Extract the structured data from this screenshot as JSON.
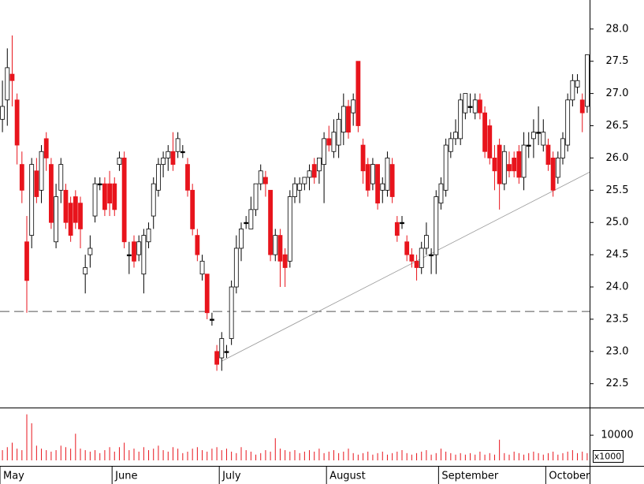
{
  "chart_data": {
    "type": "candlestick",
    "categories": [
      "May",
      null,
      null,
      null,
      null,
      null,
      null,
      null,
      null,
      null,
      null,
      null,
      null,
      null,
      null,
      null,
      null,
      null,
      null,
      null,
      null,
      null,
      null,
      "June",
      null,
      null,
      null,
      null,
      null,
      null,
      null,
      null,
      null,
      null,
      null,
      null,
      null,
      null,
      null,
      null,
      null,
      null,
      null,
      null,
      null,
      "July",
      null,
      null,
      null,
      null,
      null,
      null,
      null,
      null,
      null,
      null,
      null,
      null,
      null,
      null,
      null,
      null,
      null,
      null,
      null,
      null,
      null,
      "August",
      null,
      null,
      null,
      null,
      null,
      null,
      null,
      null,
      null,
      null,
      null,
      null,
      null,
      null,
      null,
      null,
      null,
      null,
      null,
      null,
      null,
      null,
      "September",
      null,
      null,
      null,
      null,
      null,
      null,
      null,
      null,
      null,
      null,
      null,
      null,
      null,
      null,
      null,
      null,
      null,
      null,
      null,
      null,
      null,
      "October",
      null,
      null,
      null,
      null,
      null,
      null,
      null,
      null
    ],
    "open": [
      26.6,
      26.9,
      27.3,
      26.9,
      25.9,
      24.7,
      24.8,
      25.8,
      25.5,
      26.3,
      25.9,
      24.7,
      25.5,
      25.5,
      25.3,
      25.4,
      25.3,
      24.2,
      24.5,
      25.1,
      25.6,
      25.6,
      25.6,
      25.6,
      25.9,
      26.0,
      24.5,
      24.7,
      24.5,
      24.2,
      24.7,
      25.1,
      25.5,
      25.9,
      26.0,
      26.1,
      26.1,
      26.1,
      25.9,
      25.5,
      24.8,
      24.2,
      24.2,
      23.5,
      23.0,
      22.9,
      23.0,
      23.2,
      24.0,
      24.6,
      25.0,
      24.9,
      25.2,
      25.6,
      25.7,
      25.5,
      24.5,
      24.8,
      24.5,
      24.4,
      25.4,
      25.5,
      25.6,
      25.7,
      25.9,
      25.8,
      25.9,
      26.3,
      26.1,
      26.2,
      26.4,
      26.8,
      26.7,
      27.5,
      26.2,
      25.9,
      25.6,
      25.9,
      25.5,
      25.5,
      25.9,
      25.0,
      25.0,
      24.7,
      24.5,
      24.4,
      24.3,
      24.6,
      24.5,
      24.5,
      25.3,
      25.5,
      26.1,
      26.3,
      26.3,
      26.7,
      26.8,
      26.7,
      26.9,
      26.7,
      26.5,
      26.0,
      26.2,
      25.6,
      25.9,
      26.0,
      26.1,
      25.7,
      26.2,
      26.3,
      26.4,
      26.2,
      26.2,
      26.0,
      25.7,
      26.0,
      26.2,
      26.9,
      27.1,
      26.9,
      26.8
    ],
    "high": [
      27.2,
      27.7,
      27.9,
      27.0,
      26.1,
      25.1,
      26.0,
      26.0,
      26.2,
      26.4,
      26.0,
      25.6,
      26.0,
      25.6,
      25.4,
      25.5,
      25.4,
      24.5,
      24.8,
      25.7,
      25.7,
      25.7,
      25.8,
      25.7,
      26.1,
      26.1,
      24.7,
      24.8,
      24.8,
      24.9,
      25.0,
      25.7,
      26.0,
      26.1,
      26.2,
      26.4,
      26.4,
      26.2,
      26.0,
      25.6,
      24.9,
      24.5,
      24.2,
      23.6,
      23.1,
      23.3,
      23.1,
      24.1,
      24.8,
      25.0,
      25.1,
      25.4,
      25.6,
      25.9,
      25.8,
      25.5,
      24.9,
      24.9,
      24.6,
      25.5,
      25.7,
      25.7,
      25.7,
      25.9,
      26.0,
      26.0,
      26.4,
      26.5,
      26.6,
      26.7,
      27.0,
      26.9,
      27.0,
      27.5,
      26.3,
      26.0,
      26.0,
      25.9,
      25.7,
      26.1,
      26.0,
      25.1,
      25.1,
      24.8,
      24.6,
      24.5,
      24.7,
      25.0,
      24.6,
      25.5,
      25.7,
      26.3,
      26.4,
      26.6,
      27.0,
      27.0,
      27.0,
      27.0,
      27.0,
      26.8,
      26.6,
      26.2,
      26.3,
      26.2,
      26.1,
      26.1,
      26.2,
      26.4,
      26.4,
      26.6,
      26.8,
      26.6,
      26.3,
      26.1,
      26.1,
      26.4,
      27.0,
      27.3,
      27.3,
      27.0,
      27.6
    ],
    "low": [
      26.4,
      26.5,
      26.8,
      25.9,
      25.3,
      23.6,
      24.6,
      25.3,
      25.3,
      25.8,
      24.9,
      24.6,
      25.3,
      24.9,
      24.7,
      24.9,
      24.6,
      23.9,
      24.3,
      25.0,
      25.5,
      25.1,
      25.1,
      25.1,
      25.8,
      24.6,
      24.2,
      24.3,
      24.4,
      23.9,
      24.6,
      24.9,
      25.4,
      25.7,
      25.8,
      25.8,
      26.0,
      26.0,
      25.4,
      24.8,
      24.4,
      24.1,
      23.5,
      23.4,
      22.7,
      22.7,
      22.9,
      23.1,
      23.9,
      24.4,
      24.9,
      24.9,
      25.1,
      25.5,
      25.4,
      24.4,
      24.4,
      24.0,
      24.0,
      24.3,
      25.3,
      25.3,
      25.5,
      25.5,
      25.6,
      25.6,
      25.3,
      26.1,
      26.0,
      26.0,
      26.2,
      26.3,
      26.5,
      26.4,
      25.6,
      25.4,
      25.5,
      25.2,
      25.3,
      25.4,
      25.3,
      24.7,
      24.9,
      24.4,
      24.3,
      24.1,
      24.2,
      24.5,
      24.2,
      24.2,
      25.2,
      25.4,
      26.0,
      26.2,
      26.2,
      26.6,
      26.7,
      26.6,
      26.6,
      26.0,
      25.9,
      25.5,
      25.2,
      25.5,
      25.7,
      25.7,
      25.6,
      25.5,
      26.0,
      26.0,
      26.2,
      26.1,
      25.8,
      25.4,
      25.6,
      25.9,
      26.1,
      26.8,
      27.0,
      26.4,
      26.7
    ],
    "close": [
      26.8,
      27.4,
      27.2,
      26.2,
      25.5,
      24.1,
      25.9,
      25.4,
      26.1,
      26.0,
      25.0,
      25.4,
      25.9,
      25.0,
      24.8,
      25.0,
      24.9,
      24.3,
      24.6,
      25.6,
      25.6,
      25.2,
      25.3,
      25.2,
      26.0,
      24.7,
      24.5,
      24.4,
      24.7,
      24.8,
      24.9,
      25.6,
      25.9,
      26.0,
      26.1,
      25.9,
      26.3,
      26.1,
      25.5,
      24.9,
      24.5,
      24.4,
      23.6,
      23.5,
      22.8,
      23.2,
      23.0,
      24.0,
      24.6,
      24.9,
      25.0,
      25.2,
      25.6,
      25.8,
      25.6,
      24.5,
      24.8,
      24.4,
      24.3,
      25.4,
      25.6,
      25.6,
      25.7,
      25.8,
      25.7,
      26.0,
      26.3,
      26.2,
      26.4,
      26.6,
      26.8,
      26.4,
      26.9,
      26.5,
      25.8,
      25.5,
      25.9,
      25.3,
      25.6,
      26.0,
      25.4,
      24.8,
      25.0,
      24.5,
      24.4,
      24.3,
      24.6,
      24.8,
      24.5,
      25.4,
      25.6,
      26.2,
      26.3,
      26.4,
      26.9,
      27.0,
      26.8,
      26.9,
      26.7,
      26.1,
      26.0,
      25.8,
      25.6,
      26.1,
      25.8,
      25.8,
      25.7,
      26.2,
      26.2,
      26.4,
      26.4,
      26.4,
      25.9,
      25.5,
      26.0,
      26.3,
      26.9,
      27.2,
      27.2,
      26.7,
      27.6
    ],
    "volume": [
      5000,
      6000,
      7500,
      5500,
      5000,
      17000,
      14000,
      6500,
      5500,
      5000,
      4500,
      5000,
      6500,
      6000,
      5500,
      10500,
      5500,
      5000,
      4500,
      5000,
      4000,
      5000,
      6000,
      4500,
      6000,
      7500,
      5000,
      5500,
      4500,
      6000,
      5000,
      5500,
      6500,
      5000,
      4500,
      6000,
      5500,
      4000,
      4500,
      5500,
      6000,
      5000,
      4500,
      5500,
      6000,
      5000,
      5500,
      4500,
      4000,
      6000,
      5000,
      4500,
      3500,
      4000,
      5000,
      4500,
      9000,
      5500,
      5000,
      4500,
      5000,
      4000,
      4500,
      5000,
      4500,
      5500,
      4000,
      4500,
      5000,
      4000,
      4500,
      5500,
      4000,
      3500,
      4000,
      4500,
      3500,
      4000,
      4500,
      3500,
      4000,
      4500,
      5000,
      4000,
      3500,
      4000,
      4500,
      5000,
      3500,
      4000,
      5500,
      4500,
      4000,
      3500,
      4000,
      3500,
      4000,
      3500,
      4500,
      3500,
      4000,
      3500,
      8500,
      4000,
      3500,
      4500,
      4000,
      3500,
      4000,
      4500,
      4000,
      3500,
      4000,
      4500,
      3500,
      4000,
      4500,
      5000,
      4000,
      4500,
      4000
    ],
    "up_color": "#ffffff",
    "down_color": "#e8141c",
    "volume_color": "#e8141c",
    "ylim": [
      22.13,
      28.45
    ],
    "yticks": [
      22.5,
      {
        "value": 23,
        "label": "23.0"
      },
      23.5,
      {
        "value": 24,
        "label": "24.0"
      },
      24.5,
      {
        "value": 25,
        "label": "25.0"
      },
      25.5,
      {
        "value": 26,
        "label": "26.0"
      },
      26.5,
      {
        "value": 27,
        "label": "27.0"
      },
      27.5,
      {
        "value": 28,
        "label": "28.0"
      }
    ],
    "vlim": [
      0,
      19000
    ],
    "vticks": [
      10000
    ],
    "volume_unit_label": "x1000",
    "reference_line": 23.62,
    "trend_line": {
      "start": 22.85,
      "end": 25.78
    }
  }
}
